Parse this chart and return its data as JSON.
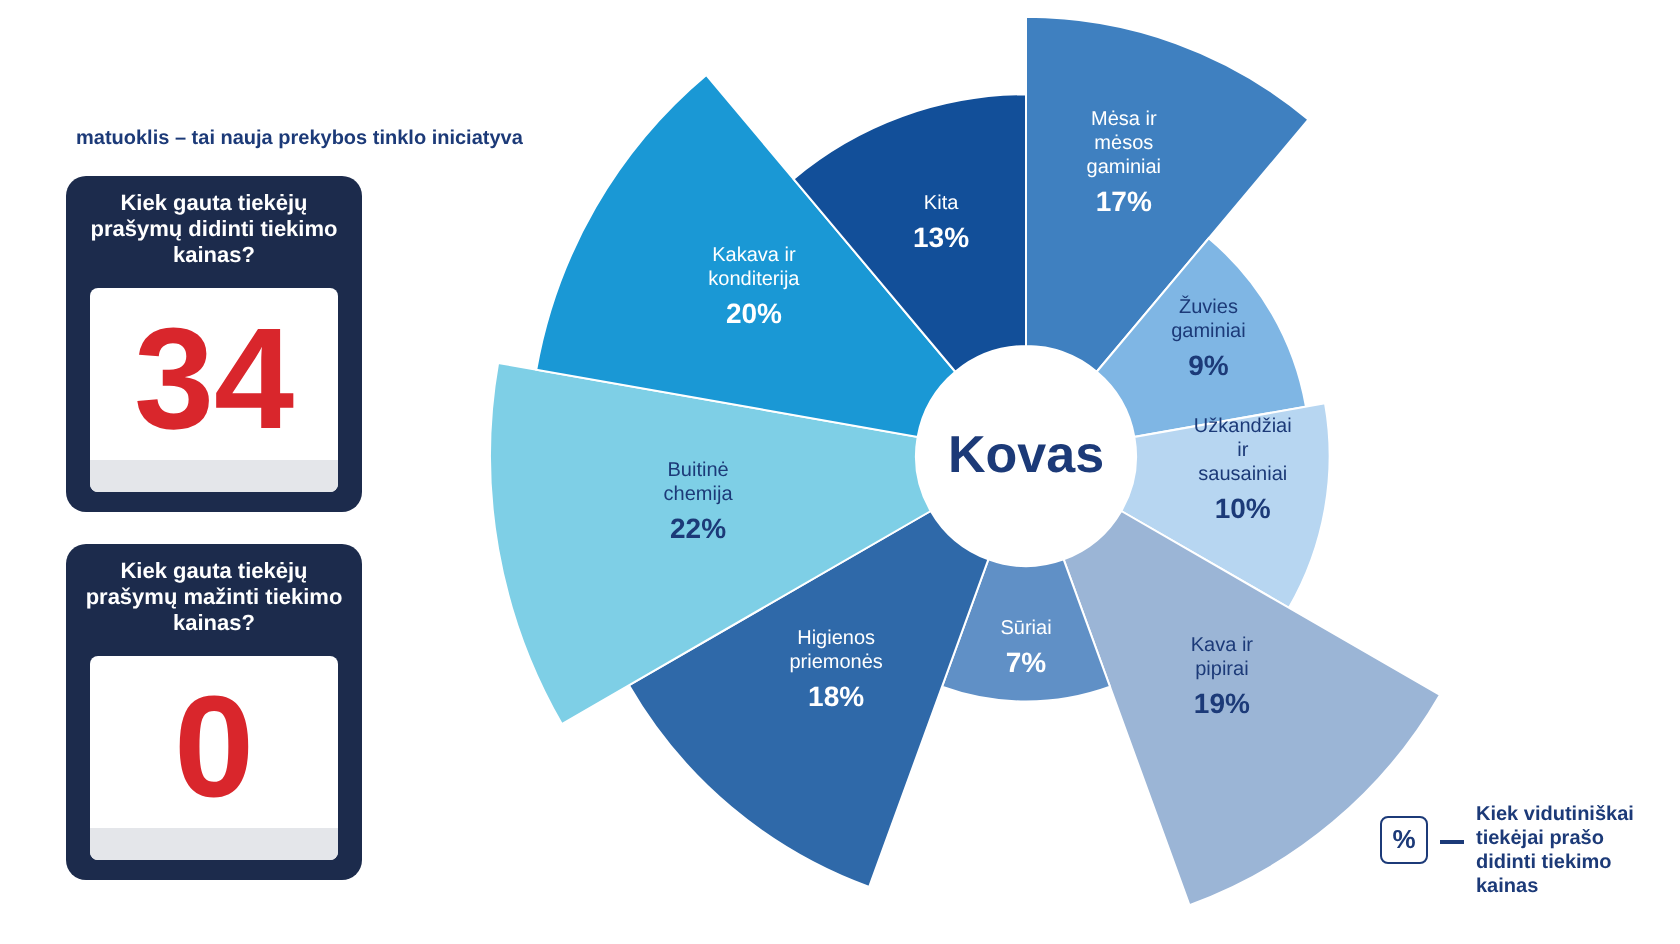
{
  "chart_data": [
    {
      "type": "other",
      "title": "Kiek gauta tiekėjų prašymų didinti tiekimo kainas?",
      "annotations": [
        "34"
      ]
    },
    {
      "type": "other",
      "title": "Kiek gauta tiekėjų prašymų mažinti tiekimo kainas?",
      "annotations": [
        "0"
      ]
    },
    {
      "type": "other",
      "title": "Kovas",
      "subtitle": "matuoklis – tai nauja prekybos tinklo iniciatyva",
      "categories": [
        "Mėsa ir mėsos gaminiai",
        "Žuvies gaminiai",
        "Užkandžiai ir sausainiai",
        "Kava ir pipirai",
        "Sūriai",
        "Higienos priemonės",
        "Buitinė chemija",
        "Kakava ir konditerija",
        "Kita"
      ],
      "values": [
        17,
        9,
        10,
        19,
        7,
        18,
        22,
        20,
        13
      ],
      "value_labels": [
        "17%",
        "9%",
        "10%",
        "19%",
        "7%",
        "18%",
        "22%",
        "20%",
        "13%"
      ],
      "colors": [
        "#3f80c0",
        "#7fb6e4",
        "#b7d6f1",
        "#9bb5d6",
        "#6090c6",
        "#2f69a9",
        "#7ecfe6",
        "#1a98d5",
        "#124f99"
      ],
      "annotations": [
        "%",
        "Kiek vidutiniškai tiekėjai prašo didinti tiekimo kainas"
      ]
    }
  ]
}
